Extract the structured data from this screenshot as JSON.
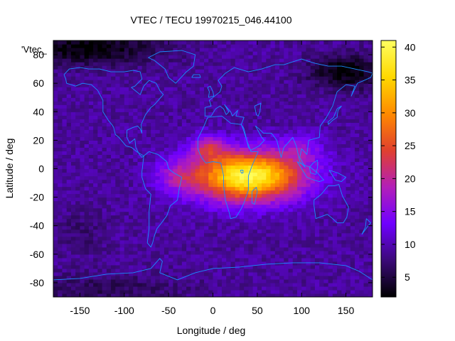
{
  "chart_data": {
    "type": "heatmap",
    "title": "VTEC / TECU 19970215_046.44100",
    "xlabel": "Longitude / deg",
    "ylabel": "Latitude / deg",
    "legend_label": "'Vtec_",
    "legend_placement": "top-left",
    "grid": false,
    "xlim": [
      -180,
      180
    ],
    "ylim": [
      -90,
      90
    ],
    "x_ticks": [
      -150,
      -100,
      -50,
      0,
      50,
      100,
      150
    ],
    "y_ticks": [
      -80,
      -60,
      -40,
      -20,
      0,
      20,
      40,
      60,
      80
    ],
    "colorbar": {
      "range": [
        2,
        41
      ],
      "ticks": [
        5,
        10,
        15,
        20,
        25,
        30,
        35,
        40
      ],
      "palette": [
        "#000000",
        "#3b0a78",
        "#6f00ff",
        "#b31fb8",
        "#e0402e",
        "#ff8a00",
        "#ffd800",
        "#ffff60"
      ]
    },
    "grid_resolution_deg": {
      "lon": 5,
      "lat": 2.5
    },
    "tec_model": {
      "background": 9,
      "peaks": [
        {
          "lon": 40,
          "lat": -5,
          "amp": 31,
          "sigma_lon": 60,
          "sigma_lat": 17
        },
        {
          "lon": -5,
          "lat": 15,
          "amp": 10,
          "sigma_lon": 18,
          "sigma_lat": 9
        },
        {
          "lon": -40,
          "lat": -5,
          "amp": 6,
          "sigma_lon": 25,
          "sigma_lat": 12
        },
        {
          "lon": 100,
          "lat": 15,
          "amp": 5,
          "sigma_lon": 25,
          "sigma_lat": 10
        }
      ],
      "lows": [
        {
          "lon": -140,
          "lat": 85,
          "amp": -7,
          "sigma_lon": 80,
          "sigma_lat": 12
        },
        {
          "lon": 150,
          "lat": 68,
          "amp": -7,
          "sigma_lon": 40,
          "sigma_lat": 12
        },
        {
          "lon": -120,
          "lat": -85,
          "amp": -3,
          "sigma_lon": 90,
          "sigma_lat": 12
        },
        {
          "lon": -150,
          "lat": -45,
          "amp": -2,
          "sigma_lon": 30,
          "sigma_lat": 15
        }
      ]
    },
    "coastlines": [
      {
        "name": "north-america",
        "points": [
          [
            -168,
            66
          ],
          [
            -162,
            70
          ],
          [
            -150,
            71
          ],
          [
            -140,
            70
          ],
          [
            -128,
            70
          ],
          [
            -115,
            68
          ],
          [
            -100,
            68
          ],
          [
            -90,
            69
          ],
          [
            -82,
            68
          ],
          [
            -80,
            63
          ],
          [
            -88,
            58
          ],
          [
            -92,
            57
          ],
          [
            -82,
            52
          ],
          [
            -78,
            58
          ],
          [
            -72,
            62
          ],
          [
            -64,
            60
          ],
          [
            -60,
            55
          ],
          [
            -56,
            52
          ],
          [
            -66,
            45
          ],
          [
            -70,
            43
          ],
          [
            -76,
            38
          ],
          [
            -81,
            31
          ],
          [
            -80,
            25
          ],
          [
            -82,
            28
          ],
          [
            -85,
            30
          ],
          [
            -90,
            29
          ],
          [
            -97,
            27
          ],
          [
            -97,
            22
          ],
          [
            -94,
            18
          ],
          [
            -88,
            21
          ],
          [
            -87,
            15
          ],
          [
            -83,
            10
          ],
          [
            -80,
            8
          ],
          [
            -78,
            9
          ],
          [
            -86,
            12
          ],
          [
            -92,
            15
          ],
          [
            -98,
            16
          ],
          [
            -106,
            22
          ],
          [
            -110,
            24
          ],
          [
            -112,
            29
          ],
          [
            -114,
            31
          ],
          [
            -118,
            34
          ],
          [
            -124,
            40
          ],
          [
            -124,
            48
          ],
          [
            -130,
            55
          ],
          [
            -137,
            59
          ],
          [
            -147,
            60
          ],
          [
            -155,
            58
          ],
          [
            -165,
            60
          ],
          [
            -166,
            63
          ],
          [
            -168,
            66
          ]
        ]
      },
      {
        "name": "south-america",
        "points": [
          [
            -78,
            9
          ],
          [
            -72,
            12
          ],
          [
            -62,
            10
          ],
          [
            -52,
            5
          ],
          [
            -50,
            0
          ],
          [
            -44,
            -3
          ],
          [
            -35,
            -6
          ],
          [
            -38,
            -14
          ],
          [
            -40,
            -22
          ],
          [
            -48,
            -26
          ],
          [
            -52,
            -33
          ],
          [
            -58,
            -38
          ],
          [
            -63,
            -42
          ],
          [
            -66,
            -47
          ],
          [
            -68,
            -52
          ],
          [
            -70,
            -55
          ],
          [
            -74,
            -52
          ],
          [
            -72,
            -42
          ],
          [
            -72,
            -30
          ],
          [
            -70,
            -18
          ],
          [
            -76,
            -14
          ],
          [
            -80,
            -6
          ],
          [
            -80,
            -2
          ],
          [
            -78,
            9
          ]
        ]
      },
      {
        "name": "africa",
        "points": [
          [
            -17,
            21
          ],
          [
            -10,
            30
          ],
          [
            -6,
            36
          ],
          [
            10,
            37
          ],
          [
            20,
            32
          ],
          [
            32,
            31
          ],
          [
            34,
            28
          ],
          [
            38,
            20
          ],
          [
            43,
            12
          ],
          [
            51,
            12
          ],
          [
            44,
            2
          ],
          [
            40,
            -5
          ],
          [
            40,
            -15
          ],
          [
            35,
            -24
          ],
          [
            32,
            -28
          ],
          [
            26,
            -34
          ],
          [
            20,
            -35
          ],
          [
            18,
            -30
          ],
          [
            14,
            -22
          ],
          [
            12,
            -12
          ],
          [
            12,
            -5
          ],
          [
            9,
            4
          ],
          [
            0,
            5
          ],
          [
            -8,
            4
          ],
          [
            -13,
            8
          ],
          [
            -17,
            14
          ],
          [
            -17,
            21
          ]
        ]
      },
      {
        "name": "eurasia",
        "points": [
          [
            -9,
            37
          ],
          [
            -9,
            43
          ],
          [
            -2,
            44
          ],
          [
            -4,
            48
          ],
          [
            2,
            51
          ],
          [
            8,
            54
          ],
          [
            10,
            58
          ],
          [
            6,
            62
          ],
          [
            14,
            67
          ],
          [
            24,
            71
          ],
          [
            40,
            68
          ],
          [
            55,
            70
          ],
          [
            70,
            73
          ],
          [
            80,
            73
          ],
          [
            100,
            77
          ],
          [
            115,
            74
          ],
          [
            130,
            72
          ],
          [
            145,
            72
          ],
          [
            160,
            70
          ],
          [
            175,
            68
          ],
          [
            180,
            67
          ],
          [
            178,
            64
          ],
          [
            163,
            60
          ],
          [
            156,
            51
          ],
          [
            160,
            58
          ],
          [
            150,
            59
          ],
          [
            140,
            54
          ],
          [
            135,
            44
          ],
          [
            128,
            36
          ],
          [
            121,
            30
          ],
          [
            120,
            22
          ],
          [
            108,
            20
          ],
          [
            106,
            10
          ],
          [
            100,
            14
          ],
          [
            98,
            8
          ],
          [
            104,
            1
          ],
          [
            98,
            5
          ],
          [
            94,
            16
          ],
          [
            90,
            22
          ],
          [
            80,
            15
          ],
          [
            77,
            8
          ],
          [
            72,
            20
          ],
          [
            66,
            25
          ],
          [
            57,
            25
          ],
          [
            52,
            28
          ],
          [
            48,
            30
          ],
          [
            55,
            22
          ],
          [
            58,
            20
          ],
          [
            52,
            16
          ],
          [
            43,
            13
          ],
          [
            40,
            15
          ],
          [
            35,
            28
          ],
          [
            32,
            31
          ],
          [
            35,
            36
          ],
          [
            26,
            37
          ],
          [
            28,
            41
          ],
          [
            22,
            37
          ],
          [
            20,
            40
          ],
          [
            13,
            45
          ],
          [
            18,
            40
          ],
          [
            15,
            38
          ],
          [
            12,
            42
          ],
          [
            8,
            44
          ],
          [
            3,
            42
          ],
          [
            -2,
            37
          ],
          [
            -9,
            37
          ]
        ]
      },
      {
        "name": "greenland",
        "points": [
          [
            -73,
            78
          ],
          [
            -60,
            82
          ],
          [
            -35,
            83
          ],
          [
            -20,
            80
          ],
          [
            -22,
            72
          ],
          [
            -30,
            68
          ],
          [
            -42,
            60
          ],
          [
            -50,
            64
          ],
          [
            -54,
            70
          ],
          [
            -66,
            76
          ],
          [
            -73,
            78
          ]
        ]
      },
      {
        "name": "australia",
        "points": [
          [
            114,
            -22
          ],
          [
            122,
            -18
          ],
          [
            130,
            -12
          ],
          [
            137,
            -12
          ],
          [
            142,
            -11
          ],
          [
            146,
            -19
          ],
          [
            153,
            -27
          ],
          [
            151,
            -34
          ],
          [
            147,
            -38
          ],
          [
            140,
            -38
          ],
          [
            135,
            -35
          ],
          [
            129,
            -32
          ],
          [
            116,
            -35
          ],
          [
            114,
            -26
          ],
          [
            114,
            -22
          ]
        ]
      },
      {
        "name": "antarctica",
        "points": [
          [
            -180,
            -78
          ],
          [
            -150,
            -77
          ],
          [
            -120,
            -74
          ],
          [
            -90,
            -73
          ],
          [
            -70,
            -70
          ],
          [
            -60,
            -63
          ],
          [
            -57,
            -65
          ],
          [
            -60,
            -73
          ],
          [
            -40,
            -78
          ],
          [
            -20,
            -73
          ],
          [
            0,
            -70
          ],
          [
            30,
            -69
          ],
          [
            60,
            -67
          ],
          [
            90,
            -66
          ],
          [
            120,
            -66
          ],
          [
            150,
            -68
          ],
          [
            165,
            -72
          ],
          [
            180,
            -78
          ]
        ]
      },
      {
        "name": "madagascar",
        "points": [
          [
            44,
            -16
          ],
          [
            49,
            -13
          ],
          [
            50,
            -16
          ],
          [
            47,
            -25
          ],
          [
            44,
            -24
          ],
          [
            44,
            -16
          ]
        ]
      },
      {
        "name": "indonesia",
        "points": [
          [
            95,
            5
          ],
          [
            106,
            -6
          ],
          [
            114,
            -8
          ],
          [
            120,
            -9
          ],
          [
            125,
            -8
          ],
          [
            118,
            -3
          ],
          [
            110,
            1
          ],
          [
            101,
            3
          ],
          [
            95,
            5
          ]
        ]
      },
      {
        "name": "borneo",
        "points": [
          [
            109,
            1
          ],
          [
            113,
            4
          ],
          [
            118,
            6
          ],
          [
            118,
            1
          ],
          [
            116,
            -4
          ],
          [
            110,
            -3
          ],
          [
            109,
            1
          ]
        ]
      },
      {
        "name": "new-guinea",
        "points": [
          [
            131,
            -1
          ],
          [
            141,
            -3
          ],
          [
            150,
            -6
          ],
          [
            145,
            -9
          ],
          [
            138,
            -8
          ],
          [
            131,
            -1
          ]
        ]
      },
      {
        "name": "japan",
        "points": [
          [
            130,
            31
          ],
          [
            135,
            34
          ],
          [
            140,
            36
          ],
          [
            141,
            41
          ],
          [
            145,
            44
          ],
          [
            140,
            42
          ],
          [
            136,
            36
          ],
          [
            130,
            33
          ],
          [
            130,
            31
          ]
        ]
      },
      {
        "name": "uk",
        "points": [
          [
            -5,
            50
          ],
          [
            1,
            51
          ],
          [
            0,
            54
          ],
          [
            -3,
            58
          ],
          [
            -6,
            57
          ],
          [
            -4,
            54
          ],
          [
            -5,
            50
          ]
        ]
      },
      {
        "name": "new-zealand",
        "points": [
          [
            173,
            -35
          ],
          [
            178,
            -38
          ],
          [
            174,
            -41
          ],
          [
            168,
            -46
          ],
          [
            172,
            -41
          ],
          [
            173,
            -35
          ]
        ]
      },
      {
        "name": "iceland",
        "points": [
          [
            -24,
            64
          ],
          [
            -14,
            64
          ],
          [
            -15,
            66
          ],
          [
            -22,
            66
          ],
          [
            -24,
            64
          ]
        ]
      },
      {
        "name": "caspian-sea",
        "points": [
          [
            47,
            44
          ],
          [
            54,
            46
          ],
          [
            53,
            40
          ],
          [
            51,
            37
          ],
          [
            49,
            38
          ],
          [
            47,
            44
          ]
        ]
      },
      {
        "name": "lake-victoria",
        "points": [
          [
            31,
            -1
          ],
          [
            34,
            -1
          ],
          [
            34,
            -3
          ],
          [
            32,
            -3
          ],
          [
            31,
            -1
          ]
        ]
      }
    ]
  }
}
